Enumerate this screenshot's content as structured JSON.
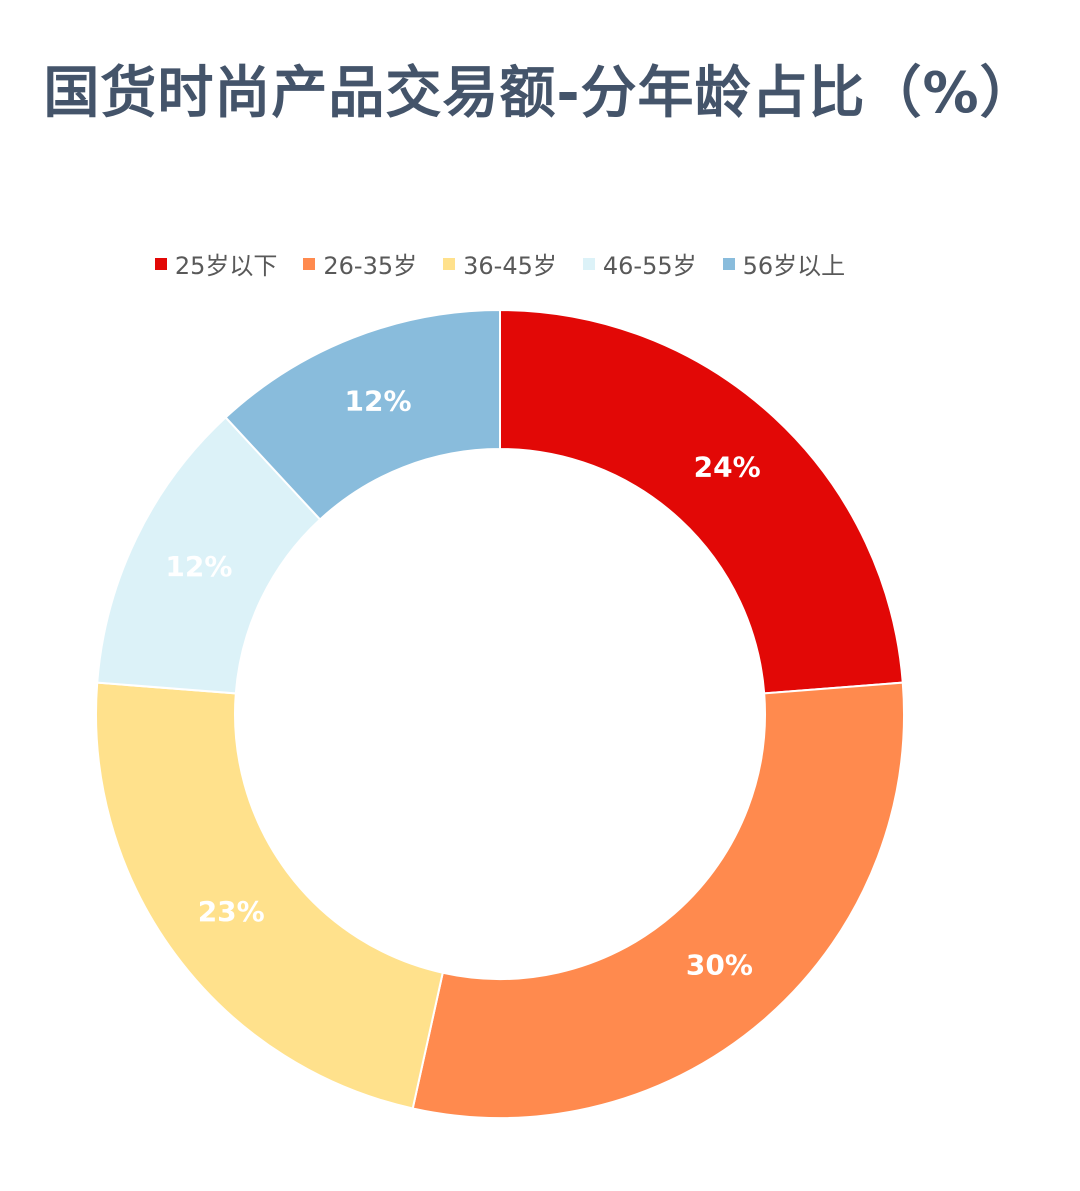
{
  "chart_data": {
    "type": "pie",
    "title": "国货时尚产品交易额-分年龄占比（%）",
    "categories": [
      "25岁以下",
      "26-35岁",
      "36-45岁",
      "46-55岁",
      "56岁以上"
    ],
    "values": [
      24,
      30,
      23,
      12,
      12
    ],
    "labels": [
      "24%",
      "30%",
      "23%",
      "12%",
      "12%"
    ],
    "colors": [
      "#e20806",
      "#ff8a4e",
      "#ffe18c",
      "#dcf2f8",
      "#89bcdc"
    ],
    "legend_position": "top"
  }
}
